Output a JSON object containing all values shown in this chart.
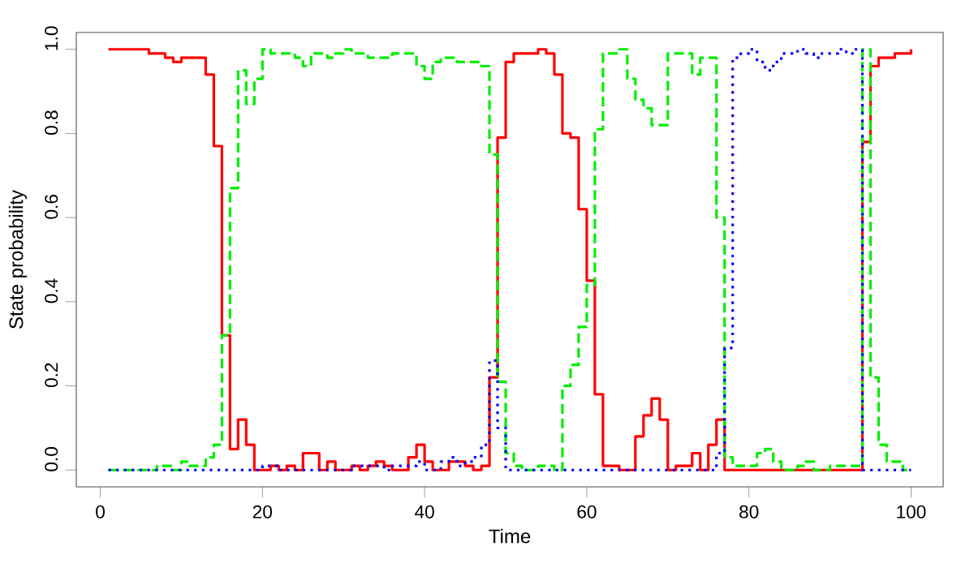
{
  "chart_data": {
    "type": "step",
    "xlabel": "Time",
    "ylabel": "State probability",
    "x": [
      1,
      2,
      3,
      4,
      5,
      6,
      7,
      8,
      9,
      10,
      11,
      12,
      13,
      14,
      15,
      16,
      17,
      18,
      19,
      20,
      21,
      22,
      23,
      24,
      25,
      26,
      27,
      28,
      29,
      30,
      31,
      32,
      33,
      34,
      35,
      36,
      37,
      38,
      39,
      40,
      41,
      42,
      43,
      44,
      45,
      46,
      47,
      48,
      49,
      50,
      51,
      52,
      53,
      54,
      55,
      56,
      57,
      58,
      59,
      60,
      61,
      62,
      63,
      64,
      65,
      66,
      67,
      68,
      69,
      70,
      71,
      72,
      73,
      74,
      75,
      76,
      77,
      78,
      79,
      80,
      81,
      82,
      83,
      84,
      85,
      86,
      87,
      88,
      89,
      90,
      91,
      92,
      93,
      94,
      95,
      96,
      97,
      98,
      99,
      100
    ],
    "xlim": [
      -2.96,
      103.96
    ],
    "ylim": [
      -0.04,
      1.04
    ],
    "xticks": [
      0,
      20,
      40,
      60,
      80,
      100
    ],
    "yticks": [
      {
        "value": 0,
        "label": "0.0"
      },
      {
        "value": 0.2,
        "label": "0.2"
      },
      {
        "value": 0.4,
        "label": "0.4"
      },
      {
        "value": 0.6,
        "label": "0.6"
      },
      {
        "value": 0.8,
        "label": "0.8"
      },
      {
        "value": 1,
        "label": "1.0"
      }
    ],
    "series": [
      {
        "color": "#ff0000",
        "line_style": "solid",
        "values": [
          1.0,
          1.0,
          1.0,
          1.0,
          1.0,
          0.99,
          0.99,
          0.98,
          0.97,
          0.98,
          0.98,
          0.98,
          0.94,
          0.77,
          0.32,
          0.05,
          0.12,
          0.06,
          0.0,
          0.0,
          0.01,
          0.0,
          0.01,
          0.0,
          0.04,
          0.04,
          0.0,
          0.02,
          0.0,
          0.0,
          0.01,
          0.0,
          0.01,
          0.02,
          0.01,
          0.0,
          0.0,
          0.03,
          0.06,
          0.02,
          0.0,
          0.0,
          0.02,
          0.02,
          0.01,
          0.0,
          0.01,
          0.22,
          0.79,
          0.97,
          0.99,
          0.99,
          0.99,
          1.0,
          0.99,
          0.94,
          0.8,
          0.79,
          0.62,
          0.45,
          0.18,
          0.01,
          0.01,
          0.0,
          0.0,
          0.08,
          0.13,
          0.17,
          0.12,
          0.0,
          0.01,
          0.01,
          0.04,
          0.0,
          0.06,
          0.12,
          0.0,
          0.0,
          0.0,
          0.0,
          0.0,
          0.0,
          0.0,
          0.0,
          0.0,
          0.0,
          0.0,
          0.0,
          0.0,
          0.0,
          0.0,
          0.0,
          0.0,
          0.78,
          0.96,
          0.98,
          0.98,
          0.99,
          0.99,
          1.0
        ]
      },
      {
        "color": "#00ee00",
        "line_style": "dashed",
        "values": [
          0.0,
          0.0,
          0.0,
          0.0,
          0.0,
          0.0,
          0.01,
          0.01,
          0.0,
          0.02,
          0.01,
          0.01,
          0.03,
          0.06,
          0.32,
          0.67,
          0.95,
          0.87,
          0.93,
          1.0,
          0.99,
          0.99,
          0.99,
          0.98,
          0.96,
          0.99,
          0.99,
          0.98,
          0.99,
          1.0,
          0.99,
          0.99,
          0.98,
          0.98,
          0.98,
          0.99,
          0.99,
          0.99,
          0.96,
          0.93,
          0.97,
          0.98,
          0.98,
          0.97,
          0.97,
          0.97,
          0.96,
          0.75,
          0.21,
          0.04,
          0.01,
          0.0,
          0.0,
          0.01,
          0.01,
          0.0,
          0.2,
          0.25,
          0.34,
          0.44,
          0.81,
          0.99,
          0.99,
          1.0,
          0.93,
          0.88,
          0.86,
          0.82,
          0.82,
          0.99,
          0.99,
          0.99,
          0.94,
          0.98,
          0.98,
          0.6,
          0.03,
          0.01,
          0.01,
          0.01,
          0.04,
          0.05,
          0.02,
          0.0,
          0.0,
          0.01,
          0.02,
          0.0,
          0.0,
          0.01,
          0.01,
          0.01,
          0.01,
          1.0,
          0.22,
          0.06,
          0.02,
          0.02,
          0.0,
          0.0
        ]
      },
      {
        "color": "#0000ff",
        "line_style": "dotted",
        "values": [
          0.0,
          0.0,
          0.0,
          0.0,
          0.0,
          0.0,
          0.0,
          0.0,
          0.0,
          0.0,
          0.0,
          0.0,
          0.0,
          0.0,
          0.0,
          0.0,
          0.0,
          0.0,
          0.0,
          0.01,
          0.01,
          0.0,
          0.0,
          0.0,
          0.0,
          0.0,
          0.0,
          0.0,
          0.0,
          0.0,
          0.01,
          0.01,
          0.01,
          0.01,
          0.0,
          0.01,
          0.01,
          0.01,
          0.02,
          0.0,
          0.0,
          0.02,
          0.03,
          0.01,
          0.02,
          0.03,
          0.06,
          0.26,
          0.1,
          0.0,
          0.0,
          0.0,
          0.0,
          0.0,
          0.0,
          0.0,
          0.0,
          0.0,
          0.0,
          0.0,
          0.0,
          0.0,
          0.0,
          0.0,
          0.0,
          0.0,
          0.0,
          0.0,
          0.0,
          0.0,
          0.0,
          0.0,
          0.0,
          0.0,
          0.0,
          0.04,
          0.29,
          0.98,
          0.99,
          1.0,
          0.97,
          0.95,
          0.97,
          0.99,
          0.99,
          1.0,
          0.99,
          0.98,
          0.99,
          0.99,
          1.0,
          0.99,
          1.0,
          0.0,
          0.0,
          0.0,
          0.0,
          0.0,
          0.0,
          0.0
        ]
      }
    ]
  }
}
